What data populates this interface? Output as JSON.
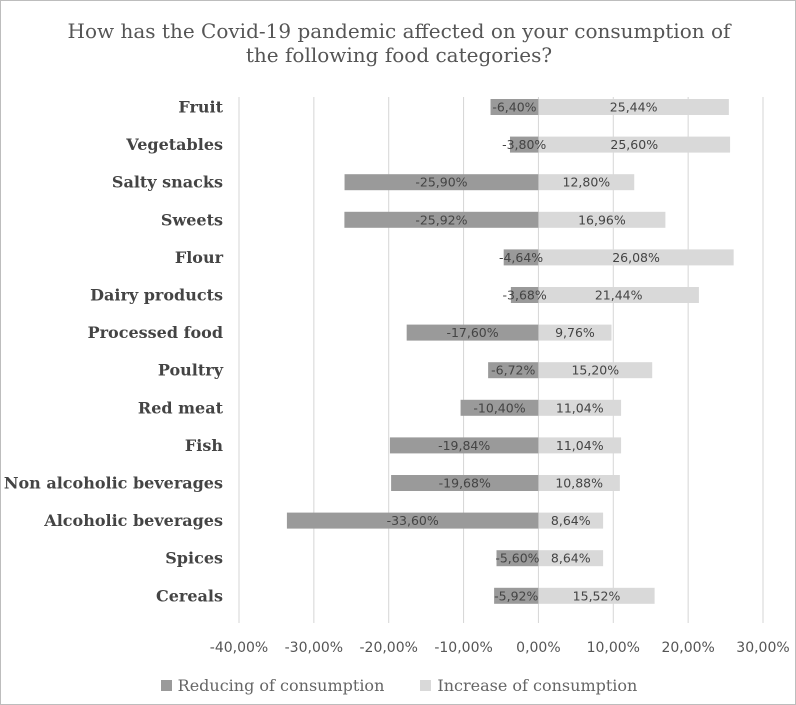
{
  "chart_data": {
    "type": "bar",
    "orientation": "horizontal",
    "stacking": "diverging",
    "title": "How has the Covid-19 pandemic affected on your consumption of the following food categories?",
    "categories": [
      "Fruit",
      "Vegetables",
      "Salty snacks",
      "Sweets",
      "Flour",
      "Dairy products",
      "Processed food",
      "Poultry",
      "Red meat",
      "Fish",
      "Non alcoholic beverages",
      "Alcoholic beverages",
      "Spices",
      "Cereals"
    ],
    "series": [
      {
        "name": "Reducing of consumption",
        "color": "#9a9a9a",
        "values": [
          -6.4,
          -3.8,
          -25.9,
          -25.92,
          -4.64,
          -3.68,
          -17.6,
          -6.72,
          -10.4,
          -19.84,
          -19.68,
          -33.6,
          -5.6,
          -5.92
        ],
        "labels": [
          "-6,40%",
          "-3,80%",
          "-25,90%",
          "-25,92%",
          "-4,64%",
          "-3,68%",
          "-17,60%",
          "-6,72%",
          "-10,40%",
          "-19,84%",
          "-19,68%",
          "-33,60%",
          "-5,60%",
          "-5,92%"
        ]
      },
      {
        "name": "Increase of consumption",
        "color": "#d9d9d9",
        "values": [
          25.44,
          25.6,
          12.8,
          16.96,
          26.08,
          21.44,
          9.76,
          15.2,
          11.04,
          11.04,
          10.88,
          8.64,
          8.64,
          15.52
        ],
        "labels": [
          "25,44%",
          "25,60%",
          "12,80%",
          "16,96%",
          "26,08%",
          "21,44%",
          "9,76%",
          "15,20%",
          "11,04%",
          "11,04%",
          "10,88%",
          "8,64%",
          "8,64%",
          "15,52%"
        ]
      }
    ],
    "xlim": [
      -40,
      30
    ],
    "xticks": [
      -40,
      -30,
      -20,
      -10,
      0,
      10,
      20,
      30
    ],
    "xtick_labels": [
      "-40,00%",
      "-30,00%",
      "-20,00%",
      "-10,00%",
      "0,00%",
      "10,00%",
      "20,00%",
      "30,00%"
    ],
    "grid": true,
    "legend": "bottom"
  }
}
